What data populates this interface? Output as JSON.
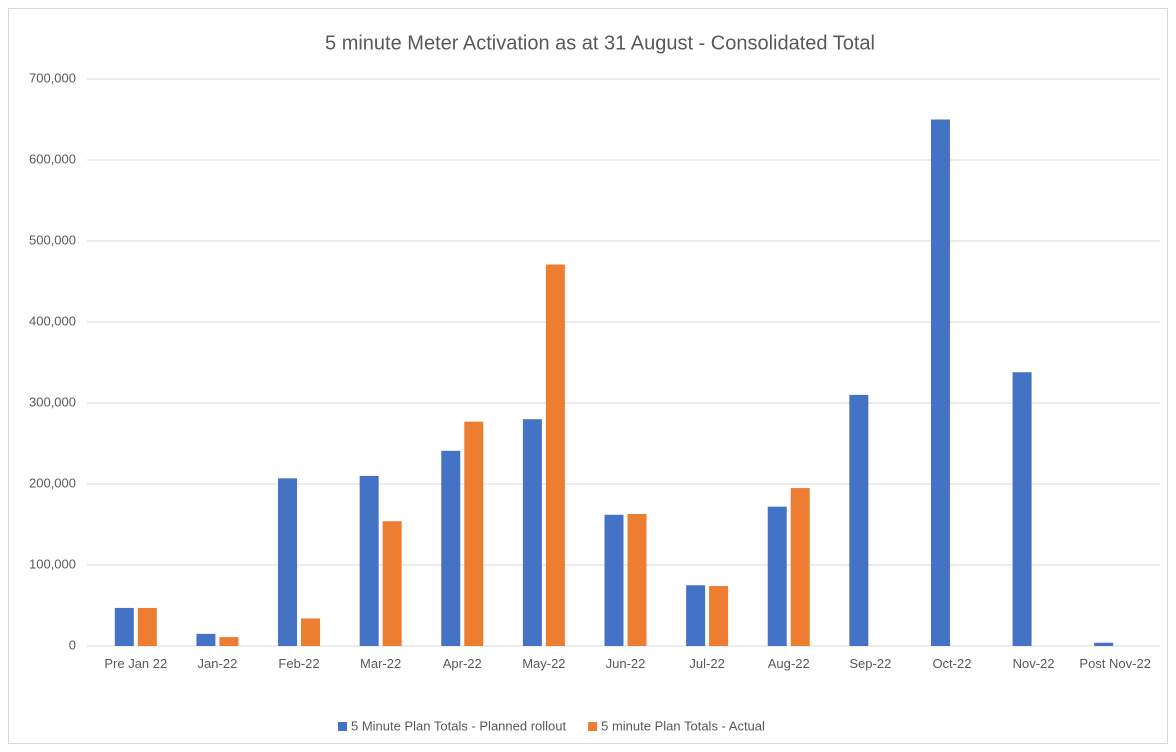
{
  "chart_data": {
    "type": "bar",
    "title": "5 minute Meter Activation as at 31 August - Consolidated Total",
    "categories": [
      "Pre Jan 22",
      "Jan-22",
      "Feb-22",
      "Mar-22",
      "Apr-22",
      "May-22",
      "Jun-22",
      "Jul-22",
      "Aug-22",
      "Sep-22",
      "Oct-22",
      "Nov-22",
      "Post Nov-22"
    ],
    "series": [
      {
        "name": "5 Minute Plan Totals - Planned rollout",
        "color": "#4472c4",
        "values": [
          47000,
          15000,
          207000,
          210000,
          241000,
          280000,
          162000,
          75000,
          172000,
          310000,
          650000,
          338000,
          4000
        ]
      },
      {
        "name": "5 minute Plan Totals - Actual",
        "color": "#ed7d31",
        "values": [
          47000,
          11000,
          34000,
          154000,
          277000,
          471000,
          163000,
          74000,
          195000,
          null,
          null,
          null,
          null
        ]
      }
    ],
    "ylim": [
      0,
      700000
    ],
    "yticks": [
      0,
      {
        "value": 100000,
        "label": "100,000"
      },
      {
        "value": 200000,
        "label": "200,000"
      },
      {
        "value": 300000,
        "label": "300,000"
      },
      {
        "value": 400000,
        "label": "400,000"
      },
      {
        "value": 500000,
        "label": "500,000"
      },
      {
        "value": 600000,
        "label": "600,000"
      },
      {
        "value": 700000,
        "label": "700,000"
      }
    ],
    "grid": true,
    "legend": "bottom"
  }
}
